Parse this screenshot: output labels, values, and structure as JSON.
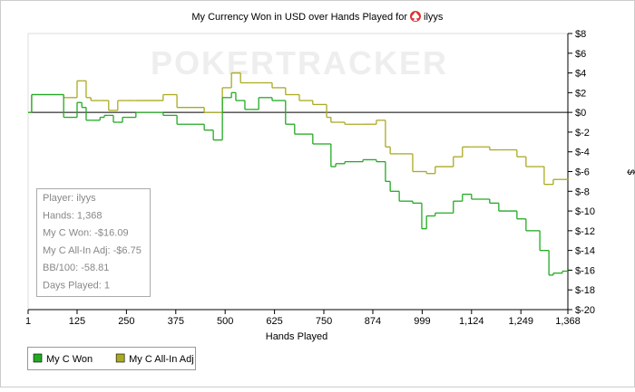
{
  "chart_data": {
    "type": "step",
    "title": "My Currency Won in USD over Hands Played for",
    "title_player": "ilyys",
    "watermark": "POKERTRACKER",
    "x_label": "Hands Played",
    "y_label": "$",
    "x": [
      1,
      10,
      91,
      102,
      125,
      137,
      148,
      160,
      183,
      194,
      205,
      217,
      228,
      240,
      251,
      274,
      343,
      378,
      447,
      470,
      493,
      516,
      527,
      539,
      550,
      562,
      585,
      619,
      653,
      676,
      688,
      722,
      757,
      768,
      780,
      803,
      849,
      883,
      895,
      906,
      918,
      941,
      975,
      998,
      1010,
      1032,
      1078,
      1101,
      1124,
      1170,
      1193,
      1239,
      1262,
      1297,
      1308,
      1320,
      1331,
      1354,
      1368
    ],
    "series": [
      {
        "name": "My C Won",
        "color": "#22aa22",
        "values": [
          0,
          1.8,
          -0.5,
          -0.5,
          1.0,
          0.5,
          -0.8,
          -0.8,
          -0.5,
          -0.3,
          -0.3,
          -1.0,
          -1.0,
          -0.5,
          -0.5,
          0,
          -0.3,
          -1.2,
          -1.8,
          -2.8,
          1.5,
          2.0,
          1.2,
          1.2,
          0.3,
          0.3,
          1.5,
          1.2,
          -1.2,
          -2.2,
          -2.2,
          -3.2,
          -3.2,
          -5.5,
          -5.2,
          -5.0,
          -4.8,
          -5.0,
          -5.0,
          -7.0,
          -8.0,
          -9.0,
          -9.2,
          -11.8,
          -10.5,
          -10.2,
          -9.0,
          -8.3,
          -8.8,
          -9.2,
          -10.0,
          -10.8,
          -12.0,
          -14.0,
          -14.0,
          -16.5,
          -16.3,
          -16.1,
          -16.09
        ]
      },
      {
        "name": "My C All-In Adj",
        "color": "#aaaa22",
        "values": [
          0,
          1.8,
          1.5,
          1.5,
          3.2,
          3.2,
          1.5,
          1.2,
          1.2,
          1.2,
          0.2,
          0.2,
          1.2,
          1.2,
          1.2,
          1.2,
          1.8,
          0.5,
          0,
          0,
          2.5,
          4.0,
          4.0,
          3.0,
          3.0,
          3.0,
          3.0,
          2.5,
          1.8,
          1.8,
          1.2,
          0.8,
          -0.5,
          -1.0,
          -1.0,
          -1.2,
          -1.2,
          -0.8,
          -0.8,
          -3.5,
          -4.2,
          -4.2,
          -6.0,
          -6.0,
          -6.2,
          -5.5,
          -4.5,
          -3.5,
          -3.5,
          -3.8,
          -3.8,
          -4.5,
          -5.5,
          -5.5,
          -7.3,
          -7.3,
          -6.8,
          -6.8,
          -6.75
        ]
      }
    ],
    "xlim": [
      1,
      1368
    ],
    "xticks": [
      1,
      125,
      250,
      375,
      500,
      625,
      750,
      874,
      999,
      {
        "value": 1124,
        "label": "1,124"
      },
      {
        "value": 1249,
        "label": "1,249"
      },
      {
        "value": 1368,
        "label": "1,368"
      }
    ],
    "ylim": [
      -20,
      8
    ],
    "yticks": [
      {
        "value": 8,
        "label": "$8"
      },
      {
        "value": 6,
        "label": "$6"
      },
      {
        "value": 4,
        "label": "$4"
      },
      {
        "value": 2,
        "label": "$2"
      },
      {
        "value": 0,
        "label": "$0"
      },
      {
        "value": -2,
        "label": "$-2"
      },
      {
        "value": -4,
        "label": "$-4"
      },
      {
        "value": -6,
        "label": "$-6"
      },
      {
        "value": -8,
        "label": "$-8"
      },
      {
        "value": -10,
        "label": "$-10"
      },
      {
        "value": -12,
        "label": "$-12"
      },
      {
        "value": -14,
        "label": "$-14"
      },
      {
        "value": -16,
        "label": "$-16"
      },
      {
        "value": -18,
        "label": "$-18"
      },
      {
        "value": -20,
        "label": "$-20"
      }
    ],
    "reference_line": 0,
    "legend": "bottom-left",
    "info_box": [
      "Player: ilyys",
      "Hands: 1,368",
      "My C Won: -$16.09",
      "My C All-In Adj: -$6.75",
      "BB/100: -58.81",
      "Days Played: 1"
    ]
  }
}
